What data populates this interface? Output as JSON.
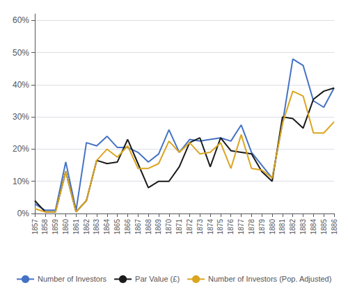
{
  "chart_data": {
    "type": "line",
    "x": [
      1857,
      1858,
      1859,
      1860,
      1861,
      1862,
      1863,
      1864,
      1865,
      1866,
      1867,
      1868,
      1869,
      1870,
      1871,
      1872,
      1873,
      1874,
      1875,
      1876,
      1877,
      1878,
      1879,
      1880,
      1881,
      1882,
      1883,
      1884,
      1885,
      1886
    ],
    "xlim": [
      1857,
      1886
    ],
    "xticks": [
      1857,
      1858,
      1859,
      1860,
      1861,
      1862,
      1863,
      1864,
      1865,
      1866,
      1867,
      1868,
      1869,
      1870,
      1871,
      1872,
      1873,
      1874,
      1875,
      1876,
      1877,
      1878,
      1879,
      1880,
      1881,
      1882,
      1883,
      1884,
      1885,
      1886
    ],
    "series": [
      {
        "name": "Number of Investors",
        "color": "#4472C4",
        "values": [
          0.03,
          0.01,
          0.01,
          0.16,
          0.01,
          0.22,
          0.21,
          0.24,
          0.205,
          0.205,
          0.19,
          0.16,
          0.185,
          0.26,
          0.19,
          0.23,
          0.225,
          0.23,
          0.235,
          0.225,
          0.275,
          0.19,
          0.15,
          0.11,
          0.28,
          0.48,
          0.46,
          0.35,
          0.33,
          0.39
        ]
      },
      {
        "name": "Par Value (£)",
        "color": "#1a1a1a",
        "values": [
          0.04,
          0.005,
          0.005,
          0.13,
          0.005,
          0.04,
          0.165,
          0.155,
          0.16,
          0.23,
          0.155,
          0.08,
          0.1,
          0.1,
          0.145,
          0.22,
          0.235,
          0.145,
          0.235,
          0.195,
          0.19,
          0.185,
          0.13,
          0.1,
          0.3,
          0.295,
          0.265,
          0.355,
          0.38,
          0.39
        ]
      },
      {
        "name": "Number of Investors (Pop. Adjusted)",
        "color": "#DAA520",
        "values": [
          0.015,
          0.005,
          0.005,
          0.13,
          0.005,
          0.04,
          0.165,
          0.2,
          0.175,
          0.21,
          0.14,
          0.14,
          0.155,
          0.225,
          0.19,
          0.22,
          0.185,
          0.19,
          0.22,
          0.14,
          0.245,
          0.14,
          0.135,
          0.11,
          0.28,
          0.38,
          0.365,
          0.25,
          0.25,
          0.285
        ]
      }
    ],
    "ylim": [
      0.0,
      0.62
    ],
    "yticks": [
      {
        "value": 0.0,
        "label": "0%"
      },
      {
        "value": 0.1,
        "label": "10%"
      },
      {
        "value": 0.2,
        "label": "20%"
      },
      {
        "value": 0.3,
        "label": "30%"
      },
      {
        "value": 0.4,
        "label": "40%"
      },
      {
        "value": 0.5,
        "label": "50%"
      },
      {
        "value": 0.6,
        "label": "60%"
      }
    ],
    "grid": true,
    "legend": "bottom"
  }
}
